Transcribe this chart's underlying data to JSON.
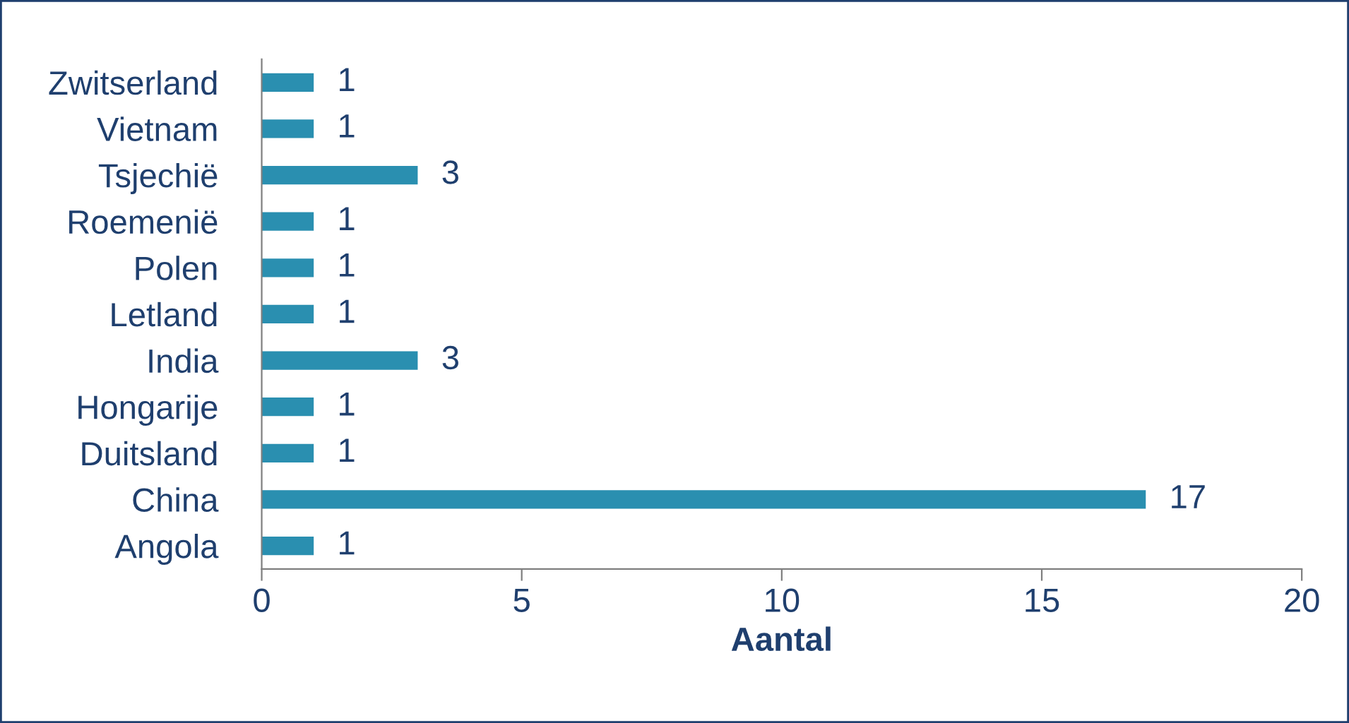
{
  "chart_data": {
    "type": "bar",
    "orientation": "horizontal",
    "xlabel": "Aantal",
    "categories": [
      "Zwitserland",
      "Vietnam",
      "Tsjechië",
      "Roemenië",
      "Polen",
      "Letland",
      "India",
      "Hongarije",
      "Duitsland",
      "China",
      "Angola"
    ],
    "values": [
      1,
      1,
      3,
      1,
      1,
      1,
      3,
      1,
      1,
      17,
      1
    ],
    "color": "#2a8fb0",
    "xlim": [
      0,
      20
    ],
    "xticks": [
      0,
      5,
      10,
      15,
      20
    ],
    "data_labels": true,
    "grid": false,
    "legend": false
  }
}
